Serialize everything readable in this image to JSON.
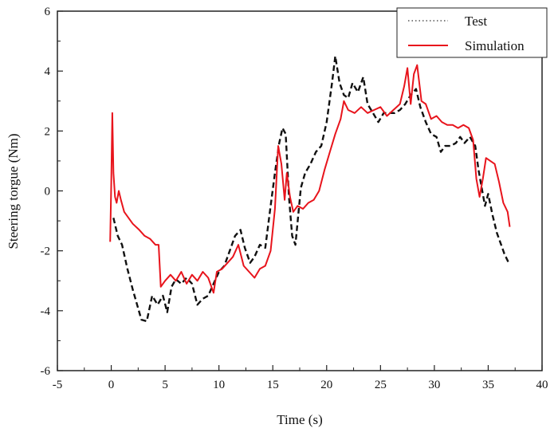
{
  "chart_data": {
    "type": "line",
    "title": "",
    "xlabel": "Time (s)",
    "ylabel": "Steering torgue (Nm)",
    "xlim": [
      -5,
      40
    ],
    "ylim": [
      -6,
      6
    ],
    "x_ticks": [
      -5,
      0,
      5,
      10,
      15,
      20,
      25,
      30,
      35,
      40
    ],
    "y_ticks": [
      -6,
      -4,
      -2,
      0,
      2,
      4,
      6
    ],
    "grid": false,
    "legend_position": "top-right",
    "legend": [
      "Test",
      "Simulation"
    ],
    "series": [
      {
        "name": "Test",
        "color": "#111111",
        "style": "dashed",
        "points": [
          [
            0.2,
            -0.9
          ],
          [
            0.6,
            -1.5
          ],
          [
            1.0,
            -1.8
          ],
          [
            1.5,
            -2.6
          ],
          [
            2.0,
            -3.3
          ],
          [
            2.4,
            -3.8
          ],
          [
            2.8,
            -4.3
          ],
          [
            3.3,
            -4.35
          ],
          [
            3.8,
            -3.5
          ],
          [
            4.3,
            -3.8
          ],
          [
            4.8,
            -3.5
          ],
          [
            5.2,
            -4.05
          ],
          [
            5.6,
            -3.2
          ],
          [
            6.0,
            -2.95
          ],
          [
            6.5,
            -3.1
          ],
          [
            7.0,
            -2.9
          ],
          [
            7.5,
            -3.1
          ],
          [
            8.0,
            -3.8
          ],
          [
            8.5,
            -3.6
          ],
          [
            9.0,
            -3.5
          ],
          [
            9.5,
            -3.1
          ],
          [
            10.0,
            -2.7
          ],
          [
            10.5,
            -2.5
          ],
          [
            11.0,
            -2.0
          ],
          [
            11.5,
            -1.5
          ],
          [
            12.0,
            -1.3
          ],
          [
            12.4,
            -1.9
          ],
          [
            12.9,
            -2.4
          ],
          [
            13.3,
            -2.2
          ],
          [
            13.8,
            -1.8
          ],
          [
            14.3,
            -1.9
          ],
          [
            14.8,
            -0.5
          ],
          [
            15.2,
            0.6
          ],
          [
            15.6,
            1.6
          ],
          [
            15.9,
            2.1
          ],
          [
            16.2,
            1.9
          ],
          [
            16.5,
            -0.2
          ],
          [
            16.8,
            -1.5
          ],
          [
            17.1,
            -1.8
          ],
          [
            17.6,
            0.1
          ],
          [
            18.0,
            0.6
          ],
          [
            18.5,
            0.9
          ],
          [
            19.0,
            1.3
          ],
          [
            19.5,
            1.5
          ],
          [
            20.0,
            2.3
          ],
          [
            20.5,
            3.6
          ],
          [
            20.8,
            4.5
          ],
          [
            21.2,
            3.6
          ],
          [
            21.6,
            3.2
          ],
          [
            22.0,
            3.1
          ],
          [
            22.4,
            3.6
          ],
          [
            22.9,
            3.3
          ],
          [
            23.4,
            3.8
          ],
          [
            23.8,
            2.9
          ],
          [
            24.3,
            2.6
          ],
          [
            24.8,
            2.3
          ],
          [
            25.3,
            2.6
          ],
          [
            25.8,
            2.6
          ],
          [
            26.3,
            2.6
          ],
          [
            26.8,
            2.7
          ],
          [
            27.3,
            2.9
          ],
          [
            27.8,
            3.2
          ],
          [
            28.3,
            3.4
          ],
          [
            28.7,
            2.8
          ],
          [
            29.2,
            2.3
          ],
          [
            29.7,
            1.9
          ],
          [
            30.2,
            1.8
          ],
          [
            30.6,
            1.3
          ],
          [
            31.0,
            1.5
          ],
          [
            31.5,
            1.5
          ],
          [
            32.0,
            1.6
          ],
          [
            32.4,
            1.8
          ],
          [
            32.8,
            1.6
          ],
          [
            33.3,
            1.8
          ],
          [
            33.8,
            1.5
          ],
          [
            34.1,
            0.7
          ],
          [
            34.4,
            0.1
          ],
          [
            34.7,
            -0.5
          ],
          [
            35.0,
            -0.1
          ],
          [
            35.4,
            -0.8
          ],
          [
            35.8,
            -1.4
          ],
          [
            36.2,
            -1.8
          ],
          [
            36.5,
            -2.1
          ],
          [
            36.9,
            -2.4
          ]
        ]
      },
      {
        "name": "Simulation",
        "color": "#e8141c",
        "style": "solid",
        "points": [
          [
            -0.1,
            -1.7
          ],
          [
            0.0,
            0.3
          ],
          [
            0.1,
            2.6
          ],
          [
            0.2,
            0.6
          ],
          [
            0.35,
            -0.2
          ],
          [
            0.5,
            -0.4
          ],
          [
            0.7,
            0.0
          ],
          [
            0.9,
            -0.3
          ],
          [
            1.2,
            -0.7
          ],
          [
            1.6,
            -0.9
          ],
          [
            2.0,
            -1.1
          ],
          [
            2.6,
            -1.3
          ],
          [
            3.1,
            -1.5
          ],
          [
            3.6,
            -1.6
          ],
          [
            4.1,
            -1.8
          ],
          [
            4.4,
            -1.8
          ],
          [
            4.6,
            -3.2
          ],
          [
            5.0,
            -3.0
          ],
          [
            5.5,
            -2.8
          ],
          [
            6.0,
            -3.0
          ],
          [
            6.5,
            -2.7
          ],
          [
            7.0,
            -3.1
          ],
          [
            7.5,
            -2.8
          ],
          [
            8.0,
            -3.0
          ],
          [
            8.5,
            -2.7
          ],
          [
            9.0,
            -2.9
          ],
          [
            9.5,
            -3.4
          ],
          [
            9.8,
            -2.7
          ],
          [
            10.3,
            -2.6
          ],
          [
            10.8,
            -2.4
          ],
          [
            11.3,
            -2.2
          ],
          [
            11.8,
            -1.8
          ],
          [
            12.3,
            -2.5
          ],
          [
            12.8,
            -2.7
          ],
          [
            13.3,
            -2.9
          ],
          [
            13.8,
            -2.6
          ],
          [
            14.3,
            -2.5
          ],
          [
            14.8,
            -2.0
          ],
          [
            15.2,
            -0.6
          ],
          [
            15.5,
            1.5
          ],
          [
            15.8,
            0.9
          ],
          [
            16.1,
            -0.3
          ],
          [
            16.3,
            0.6
          ],
          [
            16.6,
            -0.2
          ],
          [
            16.9,
            -0.7
          ],
          [
            17.3,
            -0.5
          ],
          [
            17.8,
            -0.6
          ],
          [
            18.3,
            -0.4
          ],
          [
            18.8,
            -0.3
          ],
          [
            19.3,
            0.0
          ],
          [
            19.8,
            0.7
          ],
          [
            20.3,
            1.3
          ],
          [
            20.8,
            1.9
          ],
          [
            21.3,
            2.4
          ],
          [
            21.6,
            3.0
          ],
          [
            22.0,
            2.7
          ],
          [
            22.6,
            2.6
          ],
          [
            23.2,
            2.8
          ],
          [
            23.8,
            2.6
          ],
          [
            24.4,
            2.7
          ],
          [
            25.0,
            2.8
          ],
          [
            25.6,
            2.5
          ],
          [
            26.2,
            2.7
          ],
          [
            26.8,
            2.9
          ],
          [
            27.2,
            3.5
          ],
          [
            27.5,
            4.1
          ],
          [
            27.8,
            2.9
          ],
          [
            28.1,
            3.9
          ],
          [
            28.4,
            4.2
          ],
          [
            28.8,
            3.0
          ],
          [
            29.2,
            2.9
          ],
          [
            29.7,
            2.4
          ],
          [
            30.2,
            2.5
          ],
          [
            30.7,
            2.3
          ],
          [
            31.2,
            2.2
          ],
          [
            31.7,
            2.2
          ],
          [
            32.2,
            2.1
          ],
          [
            32.7,
            2.2
          ],
          [
            33.2,
            2.1
          ],
          [
            33.6,
            1.7
          ],
          [
            33.9,
            0.4
          ],
          [
            34.2,
            -0.2
          ],
          [
            34.5,
            0.4
          ],
          [
            34.8,
            1.1
          ],
          [
            35.2,
            1.0
          ],
          [
            35.6,
            0.9
          ],
          [
            36.0,
            0.3
          ],
          [
            36.4,
            -0.4
          ],
          [
            36.8,
            -0.7
          ],
          [
            37.0,
            -1.2
          ]
        ]
      }
    ]
  }
}
